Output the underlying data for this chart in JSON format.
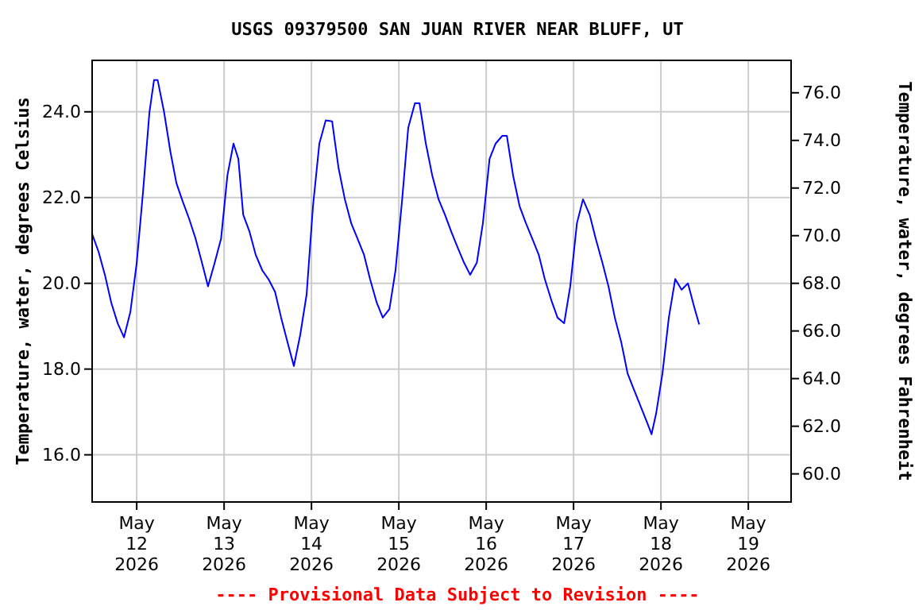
{
  "chart_data": {
    "type": "line",
    "title": "USGS 09379500 SAN JUAN RIVER NEAR BLUFF, UT",
    "ylabel": "Temperature, water, degrees Celsius",
    "y2label": "Temperature, water, degrees Fahrenheit",
    "annotations": [
      "---- Provisional Data Subject to Revision ----"
    ],
    "grid": true,
    "marker": "none",
    "line_style": "solid",
    "xlim": [
      "2026-05-11T11:45",
      "2026-05-19T11:45"
    ],
    "xticks": [
      {
        "value": "2026-05-12",
        "label": "May\n12\n2026"
      },
      {
        "value": "2026-05-13",
        "label": "May\n13\n2026"
      },
      {
        "value": "2026-05-14",
        "label": "May\n14\n2026"
      },
      {
        "value": "2026-05-15",
        "label": "May\n15\n2026"
      },
      {
        "value": "2026-05-16",
        "label": "May\n16\n2026"
      },
      {
        "value": "2026-05-17",
        "label": "May\n17\n2026"
      },
      {
        "value": "2026-05-18",
        "label": "May\n18\n2026"
      },
      {
        "value": "2026-05-19",
        "label": "May\n19\n2026"
      }
    ],
    "ylim": [
      14.9,
      25.2
    ],
    "yticks": [
      {
        "value": 16,
        "label": "16.0"
      },
      {
        "value": 18,
        "label": "18.0"
      },
      {
        "value": 20,
        "label": "20.0"
      },
      {
        "value": 22,
        "label": "22.0"
      },
      {
        "value": 24,
        "label": "24.0"
      }
    ],
    "y2lim": [
      58.82,
      77.36
    ],
    "y2ticks": [
      {
        "value": 60,
        "label": "60.0"
      },
      {
        "value": 62,
        "label": "62.0"
      },
      {
        "value": 64,
        "label": "64.0"
      },
      {
        "value": 66,
        "label": "66.0"
      },
      {
        "value": 68,
        "label": "68.0"
      },
      {
        "value": 70,
        "label": "70.0"
      },
      {
        "value": 72,
        "label": "72.0"
      },
      {
        "value": 74,
        "label": "74.0"
      },
      {
        "value": 76,
        "label": "76.0"
      }
    ],
    "series": [
      {
        "color": "#0000ff",
        "x": [
          "2026-05-11T11:45",
          "2026-05-11T13:30",
          "2026-05-11T15:15",
          "2026-05-11T17:00",
          "2026-05-11T18:45",
          "2026-05-11T20:30",
          "2026-05-11T22:15",
          "2026-05-12T00:00",
          "2026-05-12T01:45",
          "2026-05-12T03:30",
          "2026-05-12T04:45",
          "2026-05-12T05:45",
          "2026-05-12T07:30",
          "2026-05-12T09:15",
          "2026-05-12T10:55",
          "2026-05-12T12:40",
          "2026-05-12T14:25",
          "2026-05-12T16:10",
          "2026-05-12T17:55",
          "2026-05-12T19:35",
          "2026-05-12T21:25",
          "2026-05-12T23:10",
          "2026-05-13T00:55",
          "2026-05-13T02:35",
          "2026-05-13T03:55",
          "2026-05-13T05:15",
          "2026-05-13T07:00",
          "2026-05-13T08:40",
          "2026-05-13T10:30",
          "2026-05-13T12:10",
          "2026-05-13T14:00",
          "2026-05-13T15:40",
          "2026-05-13T17:30",
          "2026-05-13T19:10",
          "2026-05-13T20:55",
          "2026-05-13T22:40",
          "2026-05-14T00:25",
          "2026-05-14T02:10",
          "2026-05-14T03:55",
          "2026-05-14T05:40",
          "2026-05-14T07:25",
          "2026-05-14T09:10",
          "2026-05-14T10:55",
          "2026-05-14T12:40",
          "2026-05-14T14:25",
          "2026-05-14T16:05",
          "2026-05-14T17:55",
          "2026-05-14T19:35",
          "2026-05-14T21:25",
          "2026-05-14T23:05",
          "2026-05-15T00:55",
          "2026-05-15T02:35",
          "2026-05-15T04:25",
          "2026-05-15T05:40",
          "2026-05-15T07:25",
          "2026-05-15T09:10",
          "2026-05-15T10:55",
          "2026-05-15T12:40",
          "2026-05-15T14:25",
          "2026-05-15T16:05",
          "2026-05-15T17:55",
          "2026-05-15T19:35",
          "2026-05-15T21:25",
          "2026-05-15T23:05",
          "2026-05-16T00:55",
          "2026-05-16T02:35",
          "2026-05-16T04:25",
          "2026-05-16T05:40",
          "2026-05-16T07:25",
          "2026-05-16T09:10",
          "2026-05-16T10:55",
          "2026-05-16T12:40",
          "2026-05-16T14:25",
          "2026-05-16T16:05",
          "2026-05-16T17:55",
          "2026-05-16T19:35",
          "2026-05-16T21:25",
          "2026-05-16T23:05",
          "2026-05-17T00:55",
          "2026-05-17T02:35",
          "2026-05-17T04:25",
          "2026-05-17T06:05",
          "2026-05-17T07:55",
          "2026-05-17T09:35",
          "2026-05-17T11:20",
          "2026-05-17T13:05",
          "2026-05-17T14:50",
          "2026-05-17T16:35",
          "2026-05-17T18:20",
          "2026-05-17T20:05",
          "2026-05-17T21:25",
          "2026-05-17T22:40",
          "2026-05-18T00:25",
          "2026-05-18T02:10",
          "2026-05-18T03:55",
          "2026-05-18T05:40",
          "2026-05-18T07:25",
          "2026-05-18T09:10",
          "2026-05-18T10:30"
        ],
        "values": [
          21.15,
          20.74,
          20.2,
          19.55,
          19.07,
          18.74,
          19.33,
          20.48,
          22.15,
          24.0,
          24.74,
          24.74,
          24.0,
          23.07,
          22.33,
          21.9,
          21.5,
          21.04,
          20.48,
          19.93,
          20.48,
          21.04,
          22.52,
          23.26,
          22.9,
          21.6,
          21.2,
          20.67,
          20.3,
          20.1,
          19.8,
          19.2,
          18.6,
          18.07,
          18.8,
          19.74,
          21.8,
          23.26,
          23.8,
          23.78,
          22.7,
          21.96,
          21.4,
          21.04,
          20.67,
          20.1,
          19.55,
          19.2,
          19.4,
          20.3,
          21.96,
          23.63,
          24.2,
          24.2,
          23.26,
          22.52,
          21.96,
          21.6,
          21.2,
          20.85,
          20.48,
          20.2,
          20.48,
          21.4,
          22.9,
          23.26,
          23.44,
          23.44,
          22.5,
          21.8,
          21.4,
          21.04,
          20.67,
          20.1,
          19.6,
          19.2,
          19.07,
          19.93,
          21.4,
          21.96,
          21.6,
          21.04,
          20.48,
          19.93,
          19.2,
          18.63,
          17.9,
          17.52,
          17.15,
          16.78,
          16.48,
          16.96,
          17.9,
          19.2,
          20.1,
          19.85,
          20.0,
          19.44,
          19.04
        ]
      }
    ]
  }
}
